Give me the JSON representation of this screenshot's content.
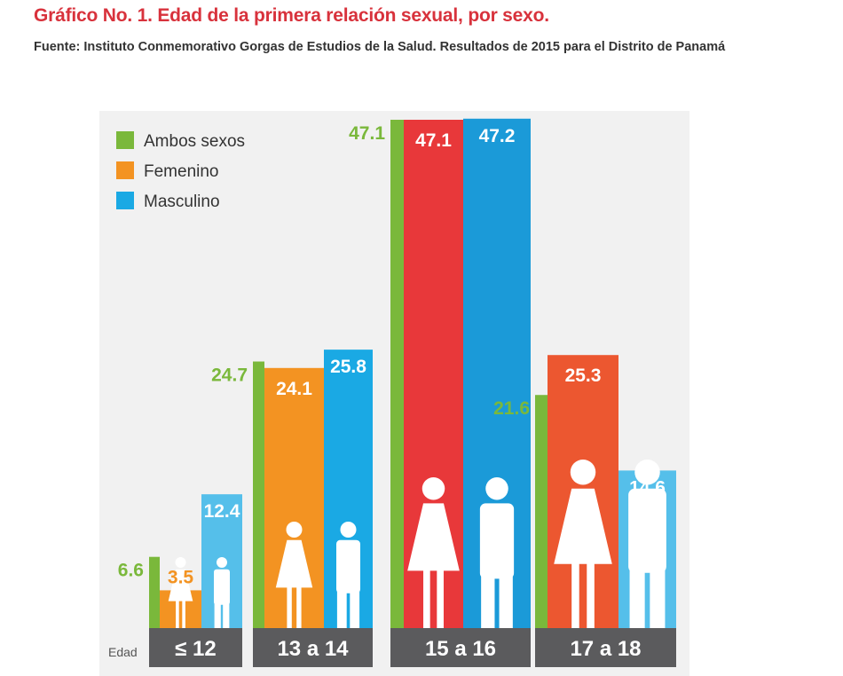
{
  "title": "Gráfico No. 1. Edad de la primera relación sexual, por sexo.",
  "source": "Fuente: Instituto Conmemorativo Gorgas de Estudios de la Salud. Resultados de 2015 para el Distrito de Panamá",
  "chart_data": {
    "type": "bar",
    "title": "Gráfico No. 1. Edad de la primera relación sexual, por sexo.",
    "xlabel": "Edad",
    "ylabel": "",
    "categories": [
      "≤ 12",
      "13 a 14",
      "15 a 16",
      "17 a 18"
    ],
    "series": [
      {
        "name": "Ambos sexos",
        "values": [
          6.6,
          24.7,
          47.1,
          21.6
        ],
        "color": "#7ab83b"
      },
      {
        "name": "Femenino",
        "values": [
          3.5,
          24.1,
          47.1,
          25.3
        ],
        "colors": [
          "#f39322",
          "#f39322",
          "#e8383a",
          "#ec5730"
        ],
        "color": "#f39322"
      },
      {
        "name": "Masculino",
        "values": [
          12.4,
          25.8,
          47.2,
          14.6
        ],
        "colors": [
          "#55bfea",
          "#1aa9e4",
          "#1b9ad8",
          "#55bfea"
        ],
        "color": "#1aa9e4"
      }
    ],
    "ylim": [
      0,
      47.2
    ],
    "grid": false,
    "legend": "top-left",
    "data_labels": true
  }
}
